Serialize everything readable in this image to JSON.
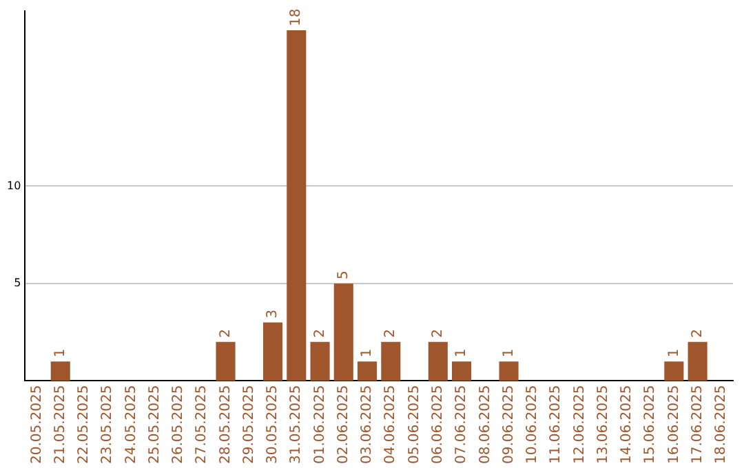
{
  "chart_data": {
    "type": "bar",
    "categories": [
      "20.05.2025",
      "21.05.2025",
      "22.05.2025",
      "23.05.2025",
      "24.05.2025",
      "25.05.2025",
      "26.05.2025",
      "27.05.2025",
      "28.05.2025",
      "29.05.2025",
      "30.05.2025",
      "31.05.2025",
      "01.06.2025",
      "02.06.2025",
      "03.06.2025",
      "04.06.2025",
      "05.06.2025",
      "06.06.2025",
      "07.06.2025",
      "08.06.2025",
      "09.06.2025",
      "10.06.2025",
      "11.06.2025",
      "12.06.2025",
      "13.06.2025",
      "14.06.2025",
      "15.06.2025",
      "16.06.2025",
      "17.06.2025",
      "18.06.2025"
    ],
    "values": [
      0,
      1,
      0,
      0,
      0,
      0,
      0,
      0,
      2,
      0,
      3,
      18,
      2,
      5,
      1,
      2,
      0,
      2,
      1,
      0,
      1,
      0,
      0,
      0,
      0,
      0,
      0,
      1,
      2,
      0
    ],
    "value_labels": [
      null,
      "1",
      null,
      null,
      null,
      null,
      null,
      null,
      "2",
      null,
      "3",
      "18",
      "2",
      "5",
      "1",
      "2",
      null,
      "2",
      "1",
      null,
      "1",
      null,
      null,
      null,
      null,
      null,
      null,
      "1",
      "2",
      null
    ],
    "color": "#a0562c",
    "ylim": [
      0,
      19
    ],
    "yticks": [
      5,
      10
    ],
    "grid": "y",
    "legend": false
  }
}
